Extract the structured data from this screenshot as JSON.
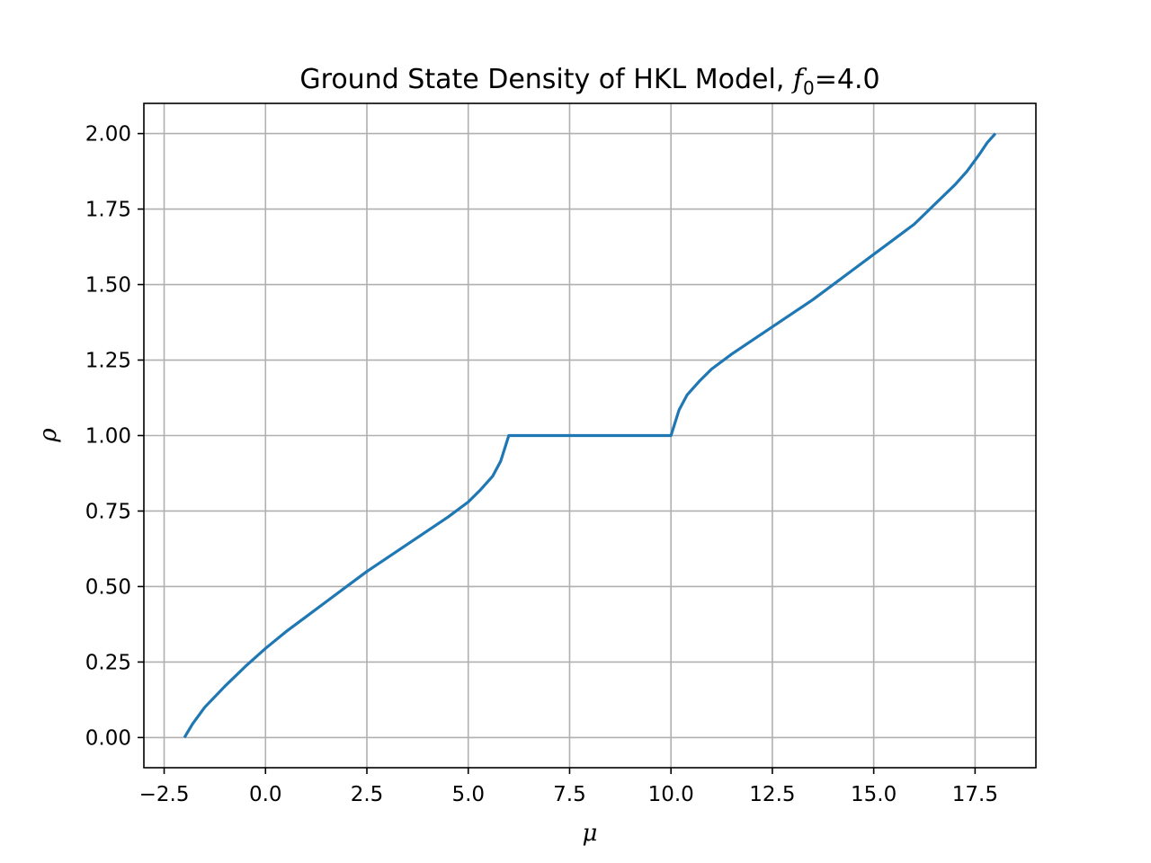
{
  "chart_data": {
    "type": "line",
    "title": {
      "prefix": "Ground State Density of HKL Model, ",
      "var": "f",
      "sub": "0",
      "suffix": "=4.0"
    },
    "xlabel": "μ",
    "ylabel": "ρ",
    "xlim": [
      -3.0,
      19.0
    ],
    "ylim": [
      -0.1,
      2.1
    ],
    "xticks": [
      -2.5,
      0.0,
      2.5,
      5.0,
      7.5,
      10.0,
      12.5,
      15.0,
      17.5
    ],
    "xtick_labels": [
      "−2.5",
      "0.0",
      "2.5",
      "5.0",
      "7.5",
      "10.0",
      "12.5",
      "15.0",
      "17.5"
    ],
    "yticks": [
      0.0,
      0.25,
      0.5,
      0.75,
      1.0,
      1.25,
      1.5,
      1.75,
      2.0
    ],
    "ytick_labels": [
      "0.00",
      "0.25",
      "0.50",
      "0.75",
      "1.00",
      "1.25",
      "1.50",
      "1.75",
      "2.00"
    ],
    "grid": true,
    "series": [
      {
        "color": "#1f77b4",
        "x": [
          -2.0,
          -1.8,
          -1.5,
          -1.0,
          -0.5,
          0.0,
          0.5,
          1.0,
          1.5,
          2.0,
          2.5,
          3.0,
          3.5,
          4.0,
          4.5,
          5.0,
          5.3,
          5.6,
          5.8,
          6.0,
          7.0,
          8.0,
          9.0,
          10.0,
          10.2,
          10.4,
          10.7,
          11.0,
          11.5,
          12.0,
          12.5,
          13.0,
          13.5,
          14.0,
          14.5,
          15.0,
          15.5,
          16.0,
          16.5,
          17.0,
          17.3,
          17.6,
          17.8,
          18.0
        ],
        "y": [
          0.0,
          0.045,
          0.1,
          0.17,
          0.235,
          0.295,
          0.35,
          0.4,
          0.45,
          0.5,
          0.55,
          0.595,
          0.64,
          0.685,
          0.73,
          0.78,
          0.82,
          0.865,
          0.915,
          1.0,
          1.0,
          1.0,
          1.0,
          1.0,
          1.085,
          1.135,
          1.18,
          1.22,
          1.27,
          1.315,
          1.36,
          1.405,
          1.45,
          1.5,
          1.55,
          1.6,
          1.65,
          1.7,
          1.765,
          1.83,
          1.875,
          1.93,
          1.97,
          2.0
        ]
      }
    ]
  }
}
